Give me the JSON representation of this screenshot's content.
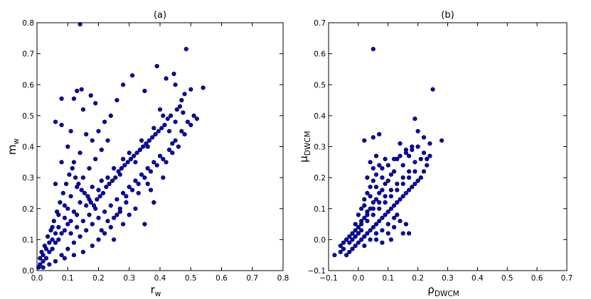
{
  "chart_data": [
    {
      "type": "scatter",
      "title": "(a)",
      "xlabel": "r",
      "xlabel_sub": "w",
      "ylabel": "m",
      "ylabel_sub": "w",
      "xlim": [
        0,
        0.8
      ],
      "ylim": [
        0,
        0.8
      ],
      "xticks": [
        "0.0",
        "0.1",
        "0.2",
        "0.3",
        "0.4",
        "0.5",
        "0.6",
        "0.7",
        "0.8"
      ],
      "yticks": [
        "0.0",
        "0.1",
        "0.2",
        "0.3",
        "0.4",
        "0.5",
        "0.6",
        "0.7",
        "0.8"
      ],
      "grid": false,
      "marker_color": "#0000cc",
      "marker_edge": "#000000",
      "points": [
        [
          0.14,
          0.795
        ],
        [
          0.485,
          0.715
        ],
        [
          0.39,
          0.66
        ],
        [
          0.31,
          0.63
        ],
        [
          0.445,
          0.635
        ],
        [
          0.54,
          0.59
        ],
        [
          0.5,
          0.585
        ],
        [
          0.145,
          0.585
        ],
        [
          0.13,
          0.58
        ],
        [
          0.12,
          0.555
        ],
        [
          0.08,
          0.555
        ],
        [
          0.175,
          0.565
        ],
        [
          0.06,
          0.48
        ],
        [
          0.08,
          0.47
        ],
        [
          0.11,
          0.45
        ],
        [
          0.15,
          0.52
        ],
        [
          0.19,
          0.54
        ],
        [
          0.26,
          0.55
        ],
        [
          0.28,
          0.6
        ],
        [
          0.35,
          0.58
        ],
        [
          0.42,
          0.62
        ],
        [
          0.45,
          0.6
        ],
        [
          0.47,
          0.55
        ],
        [
          0.48,
          0.57
        ],
        [
          0.4,
          0.52
        ],
        [
          0.41,
          0.5
        ],
        [
          0.45,
          0.48
        ],
        [
          0.38,
          0.46
        ],
        [
          0.36,
          0.4
        ],
        [
          0.34,
          0.42
        ],
        [
          0.43,
          0.45
        ],
        [
          0.44,
          0.41
        ],
        [
          0.5,
          0.47
        ],
        [
          0.52,
          0.49
        ],
        [
          0.3,
          0.38
        ],
        [
          0.32,
          0.35
        ],
        [
          0.28,
          0.36
        ],
        [
          0.27,
          0.31
        ],
        [
          0.25,
          0.33
        ],
        [
          0.23,
          0.3
        ],
        [
          0.21,
          0.29
        ],
        [
          0.2,
          0.26
        ],
        [
          0.18,
          0.27
        ],
        [
          0.17,
          0.23
        ],
        [
          0.16,
          0.21
        ],
        [
          0.14,
          0.22
        ],
        [
          0.13,
          0.18
        ],
        [
          0.12,
          0.19
        ],
        [
          0.11,
          0.16
        ],
        [
          0.1,
          0.15
        ],
        [
          0.09,
          0.13
        ],
        [
          0.08,
          0.12
        ],
        [
          0.07,
          0.1
        ],
        [
          0.06,
          0.09
        ],
        [
          0.05,
          0.07
        ],
        [
          0.04,
          0.06
        ],
        [
          0.03,
          0.04
        ],
        [
          0.02,
          0.03
        ],
        [
          0.01,
          0.02
        ],
        [
          0.005,
          0.01
        ],
        [
          0.02,
          0.01
        ],
        [
          0.04,
          0.02
        ],
        [
          0.06,
          0.03
        ],
        [
          0.08,
          0.05
        ],
        [
          0.1,
          0.07
        ],
        [
          0.12,
          0.09
        ],
        [
          0.14,
          0.11
        ],
        [
          0.16,
          0.13
        ],
        [
          0.18,
          0.15
        ],
        [
          0.2,
          0.17
        ],
        [
          0.22,
          0.19
        ],
        [
          0.24,
          0.21
        ],
        [
          0.26,
          0.23
        ],
        [
          0.28,
          0.25
        ],
        [
          0.3,
          0.27
        ],
        [
          0.32,
          0.29
        ],
        [
          0.34,
          0.31
        ],
        [
          0.36,
          0.33
        ],
        [
          0.38,
          0.35
        ],
        [
          0.4,
          0.37
        ],
        [
          0.05,
          0.14
        ],
        [
          0.07,
          0.18
        ],
        [
          0.09,
          0.21
        ],
        [
          0.11,
          0.24
        ],
        [
          0.13,
          0.27
        ],
        [
          0.15,
          0.3
        ],
        [
          0.17,
          0.33
        ],
        [
          0.19,
          0.36
        ],
        [
          0.21,
          0.39
        ],
        [
          0.23,
          0.42
        ],
        [
          0.08,
          0.35
        ],
        [
          0.1,
          0.4
        ],
        [
          0.06,
          0.28
        ],
        [
          0.12,
          0.35
        ],
        [
          0.14,
          0.38
        ],
        [
          0.2,
          0.45
        ],
        [
          0.22,
          0.48
        ],
        [
          0.24,
          0.5
        ],
        [
          0.18,
          0.42
        ],
        [
          0.16,
          0.44
        ],
        [
          0.25,
          0.1
        ],
        [
          0.28,
          0.15
        ],
        [
          0.3,
          0.18
        ],
        [
          0.32,
          0.2
        ],
        [
          0.35,
          0.15
        ],
        [
          0.38,
          0.22
        ],
        [
          0.33,
          0.25
        ],
        [
          0.27,
          0.2
        ],
        [
          0.22,
          0.12
        ],
        [
          0.2,
          0.1
        ],
        [
          0.18,
          0.08
        ],
        [
          0.15,
          0.06
        ],
        [
          0.12,
          0.05
        ],
        [
          0.09,
          0.04
        ],
        [
          0.36,
          0.28
        ],
        [
          0.42,
          0.35
        ],
        [
          0.44,
          0.38
        ],
        [
          0.46,
          0.4
        ],
        [
          0.48,
          0.44
        ],
        [
          0.41,
          0.3
        ],
        [
          0.37,
          0.26
        ],
        [
          0.29,
          0.22
        ],
        [
          0.26,
          0.18
        ],
        [
          0.24,
          0.14
        ],
        [
          0.21,
          0.13
        ],
        [
          0.19,
          0.2
        ],
        [
          0.17,
          0.18
        ],
        [
          0.15,
          0.16
        ],
        [
          0.13,
          0.14
        ],
        [
          0.11,
          0.12
        ],
        [
          0.1,
          0.2
        ],
        [
          0.09,
          0.17
        ],
        [
          0.07,
          0.14
        ],
        [
          0.06,
          0.12
        ],
        [
          0.05,
          0.1
        ],
        [
          0.04,
          0.09
        ],
        [
          0.03,
          0.07
        ],
        [
          0.02,
          0.05
        ],
        [
          0.01,
          0.04
        ],
        [
          0.015,
          0.06
        ],
        [
          0.025,
          0.08
        ],
        [
          0.035,
          0.11
        ],
        [
          0.045,
          0.13
        ],
        [
          0.055,
          0.16
        ],
        [
          0.065,
          0.19
        ],
        [
          0.075,
          0.22
        ],
        [
          0.085,
          0.25
        ],
        [
          0.095,
          0.28
        ],
        [
          0.105,
          0.31
        ],
        [
          0.115,
          0.33
        ],
        [
          0.125,
          0.3
        ],
        [
          0.135,
          0.28
        ],
        [
          0.145,
          0.26
        ],
        [
          0.155,
          0.25
        ],
        [
          0.165,
          0.24
        ],
        [
          0.175,
          0.22
        ],
        [
          0.185,
          0.21
        ],
        [
          0.195,
          0.23
        ],
        [
          0.205,
          0.24
        ],
        [
          0.215,
          0.25
        ],
        [
          0.225,
          0.27
        ],
        [
          0.235,
          0.28
        ],
        [
          0.245,
          0.29
        ],
        [
          0.255,
          0.3
        ],
        [
          0.265,
          0.32
        ],
        [
          0.275,
          0.33
        ],
        [
          0.285,
          0.34
        ],
        [
          0.295,
          0.35
        ],
        [
          0.305,
          0.36
        ],
        [
          0.315,
          0.37
        ],
        [
          0.325,
          0.38
        ],
        [
          0.335,
          0.39
        ],
        [
          0.345,
          0.4
        ],
        [
          0.355,
          0.41
        ],
        [
          0.365,
          0.42
        ],
        [
          0.375,
          0.43
        ],
        [
          0.385,
          0.44
        ],
        [
          0.395,
          0.45
        ],
        [
          0.405,
          0.46
        ],
        [
          0.415,
          0.47
        ],
        [
          0.425,
          0.49
        ],
        [
          0.435,
          0.5
        ],
        [
          0.455,
          0.52
        ],
        [
          0.465,
          0.53
        ],
        [
          0.475,
          0.51
        ],
        [
          0.23,
          0.16
        ],
        [
          0.25,
          0.17
        ],
        [
          0.27,
          0.19
        ],
        [
          0.29,
          0.24
        ],
        [
          0.31,
          0.26
        ],
        [
          0.33,
          0.28
        ],
        [
          0.35,
          0.3
        ],
        [
          0.37,
          0.32
        ],
        [
          0.39,
          0.34
        ],
        [
          0.41,
          0.36
        ],
        [
          0.43,
          0.39
        ],
        [
          0.45,
          0.42
        ],
        [
          0.47,
          0.45
        ],
        [
          0.49,
          0.48
        ],
        [
          0.51,
          0.5
        ]
      ]
    },
    {
      "type": "scatter",
      "title": "(b)",
      "xlabel": "ρ",
      "xlabel_sub": "DWCM",
      "ylabel": "μ",
      "ylabel_sub": "DWCM",
      "xlim": [
        -0.1,
        0.7
      ],
      "ylim": [
        -0.1,
        0.7
      ],
      "xticks": [
        "−0.1",
        "0.0",
        "0.1",
        "0.2",
        "0.3",
        "0.4",
        "0.5",
        "0.6",
        "0.7"
      ],
      "yticks": [
        "−0.1",
        "0.0",
        "0.1",
        "0.2",
        "0.3",
        "0.4",
        "0.5",
        "0.6",
        "0.7"
      ],
      "grid": false,
      "marker_color": "#0000cc",
      "marker_edge": "#000000",
      "points": [
        [
          0.05,
          0.615
        ],
        [
          0.25,
          0.485
        ],
        [
          0.28,
          0.32
        ],
        [
          0.19,
          0.39
        ],
        [
          0.07,
          0.34
        ],
        [
          0.05,
          0.33
        ],
        [
          0.02,
          0.32
        ],
        [
          0.24,
          0.31
        ],
        [
          0.22,
          0.33
        ],
        [
          0.2,
          0.35
        ],
        [
          0.18,
          0.3
        ],
        [
          0.16,
          0.29
        ],
        [
          0.14,
          0.31
        ],
        [
          0.13,
          0.26
        ],
        [
          0.17,
          0.27
        ],
        [
          0.15,
          0.24
        ],
        [
          0.12,
          0.22
        ],
        [
          0.11,
          0.21
        ],
        [
          0.1,
          0.19
        ],
        [
          0.09,
          0.18
        ],
        [
          0.08,
          0.16
        ],
        [
          0.07,
          0.15
        ],
        [
          0.06,
          0.13
        ],
        [
          0.05,
          0.12
        ],
        [
          0.04,
          0.1
        ],
        [
          0.03,
          0.09
        ],
        [
          0.02,
          0.07
        ],
        [
          0.01,
          0.06
        ],
        [
          0.0,
          0.04
        ],
        [
          -0.01,
          0.03
        ],
        [
          -0.02,
          0.02
        ],
        [
          -0.03,
          0.01
        ],
        [
          -0.04,
          0.0
        ],
        [
          -0.05,
          -0.01
        ],
        [
          -0.06,
          -0.02
        ],
        [
          -0.08,
          -0.05
        ],
        [
          -0.04,
          -0.05
        ],
        [
          -0.03,
          -0.04
        ],
        [
          -0.02,
          -0.03
        ],
        [
          -0.01,
          -0.02
        ],
        [
          0.0,
          -0.01
        ],
        [
          0.01,
          0.0
        ],
        [
          0.02,
          0.01
        ],
        [
          0.03,
          0.02
        ],
        [
          0.04,
          0.03
        ],
        [
          0.05,
          0.04
        ],
        [
          0.06,
          0.05
        ],
        [
          0.07,
          0.06
        ],
        [
          0.08,
          0.07
        ],
        [
          0.09,
          0.08
        ],
        [
          0.1,
          0.09
        ],
        [
          0.11,
          0.1
        ],
        [
          0.12,
          0.11
        ],
        [
          0.13,
          0.12
        ],
        [
          0.14,
          0.13
        ],
        [
          0.15,
          0.14
        ],
        [
          0.16,
          0.15
        ],
        [
          0.17,
          0.16
        ],
        [
          0.18,
          0.17
        ],
        [
          0.19,
          0.18
        ],
        [
          0.2,
          0.19
        ],
        [
          0.21,
          0.2
        ],
        [
          0.22,
          0.22
        ],
        [
          0.23,
          0.24
        ],
        [
          0.21,
          0.26
        ],
        [
          0.19,
          0.25
        ],
        [
          0.17,
          0.22
        ],
        [
          0.15,
          0.2
        ],
        [
          0.13,
          0.18
        ],
        [
          0.11,
          0.16
        ],
        [
          0.09,
          0.14
        ],
        [
          0.07,
          0.12
        ],
        [
          0.05,
          0.1
        ],
        [
          0.03,
          0.08
        ],
        [
          0.01,
          0.05
        ],
        [
          0.02,
          0.11
        ],
        [
          0.04,
          0.14
        ],
        [
          0.06,
          0.17
        ],
        [
          0.08,
          0.2
        ],
        [
          0.03,
          0.2
        ],
        [
          0.05,
          0.23
        ],
        [
          0.07,
          0.24
        ],
        [
          0.09,
          0.26
        ],
        [
          0.06,
          0.27
        ],
        [
          0.04,
          0.25
        ],
        [
          0.1,
          0.02
        ],
        [
          0.12,
          0.04
        ],
        [
          0.14,
          0.06
        ],
        [
          0.16,
          0.05
        ],
        [
          0.17,
          0.02
        ],
        [
          0.15,
          0.02
        ],
        [
          0.11,
          0.0
        ],
        [
          0.08,
          -0.01
        ],
        [
          0.06,
          0.0
        ],
        [
          0.13,
          0.08
        ],
        [
          0.0,
          0.02
        ],
        [
          -0.01,
          0.05
        ],
        [
          0.0,
          0.08
        ],
        [
          0.01,
          0.1
        ],
        [
          0.02,
          0.13
        ],
        [
          0.03,
          0.15
        ],
        [
          0.04,
          0.17
        ],
        [
          0.05,
          0.19
        ],
        [
          0.06,
          0.21
        ],
        [
          0.08,
          0.23
        ],
        [
          0.1,
          0.24
        ],
        [
          0.12,
          0.26
        ],
        [
          0.14,
          0.27
        ],
        [
          0.16,
          0.28
        ],
        [
          0.18,
          0.29
        ],
        [
          0.2,
          0.3
        ],
        [
          0.22,
          0.28
        ],
        [
          0.23,
          0.26
        ],
        [
          0.24,
          0.27
        ],
        [
          0.19,
          0.22
        ],
        [
          0.17,
          0.2
        ],
        [
          0.15,
          0.18
        ],
        [
          0.13,
          0.16
        ],
        [
          0.11,
          0.14
        ],
        [
          0.09,
          0.12
        ],
        [
          0.07,
          0.1
        ],
        [
          0.05,
          0.08
        ],
        [
          0.03,
          0.06
        ],
        [
          0.01,
          0.03
        ],
        [
          -0.01,
          0.01
        ],
        [
          -0.02,
          0.0
        ],
        [
          -0.03,
          -0.01
        ],
        [
          -0.05,
          -0.03
        ],
        [
          -0.06,
          -0.04
        ],
        [
          0.02,
          -0.02
        ],
        [
          0.04,
          0.0
        ],
        [
          0.06,
          0.02
        ],
        [
          0.08,
          0.03
        ],
        [
          0.1,
          0.05
        ],
        [
          0.12,
          0.07
        ]
      ]
    }
  ]
}
